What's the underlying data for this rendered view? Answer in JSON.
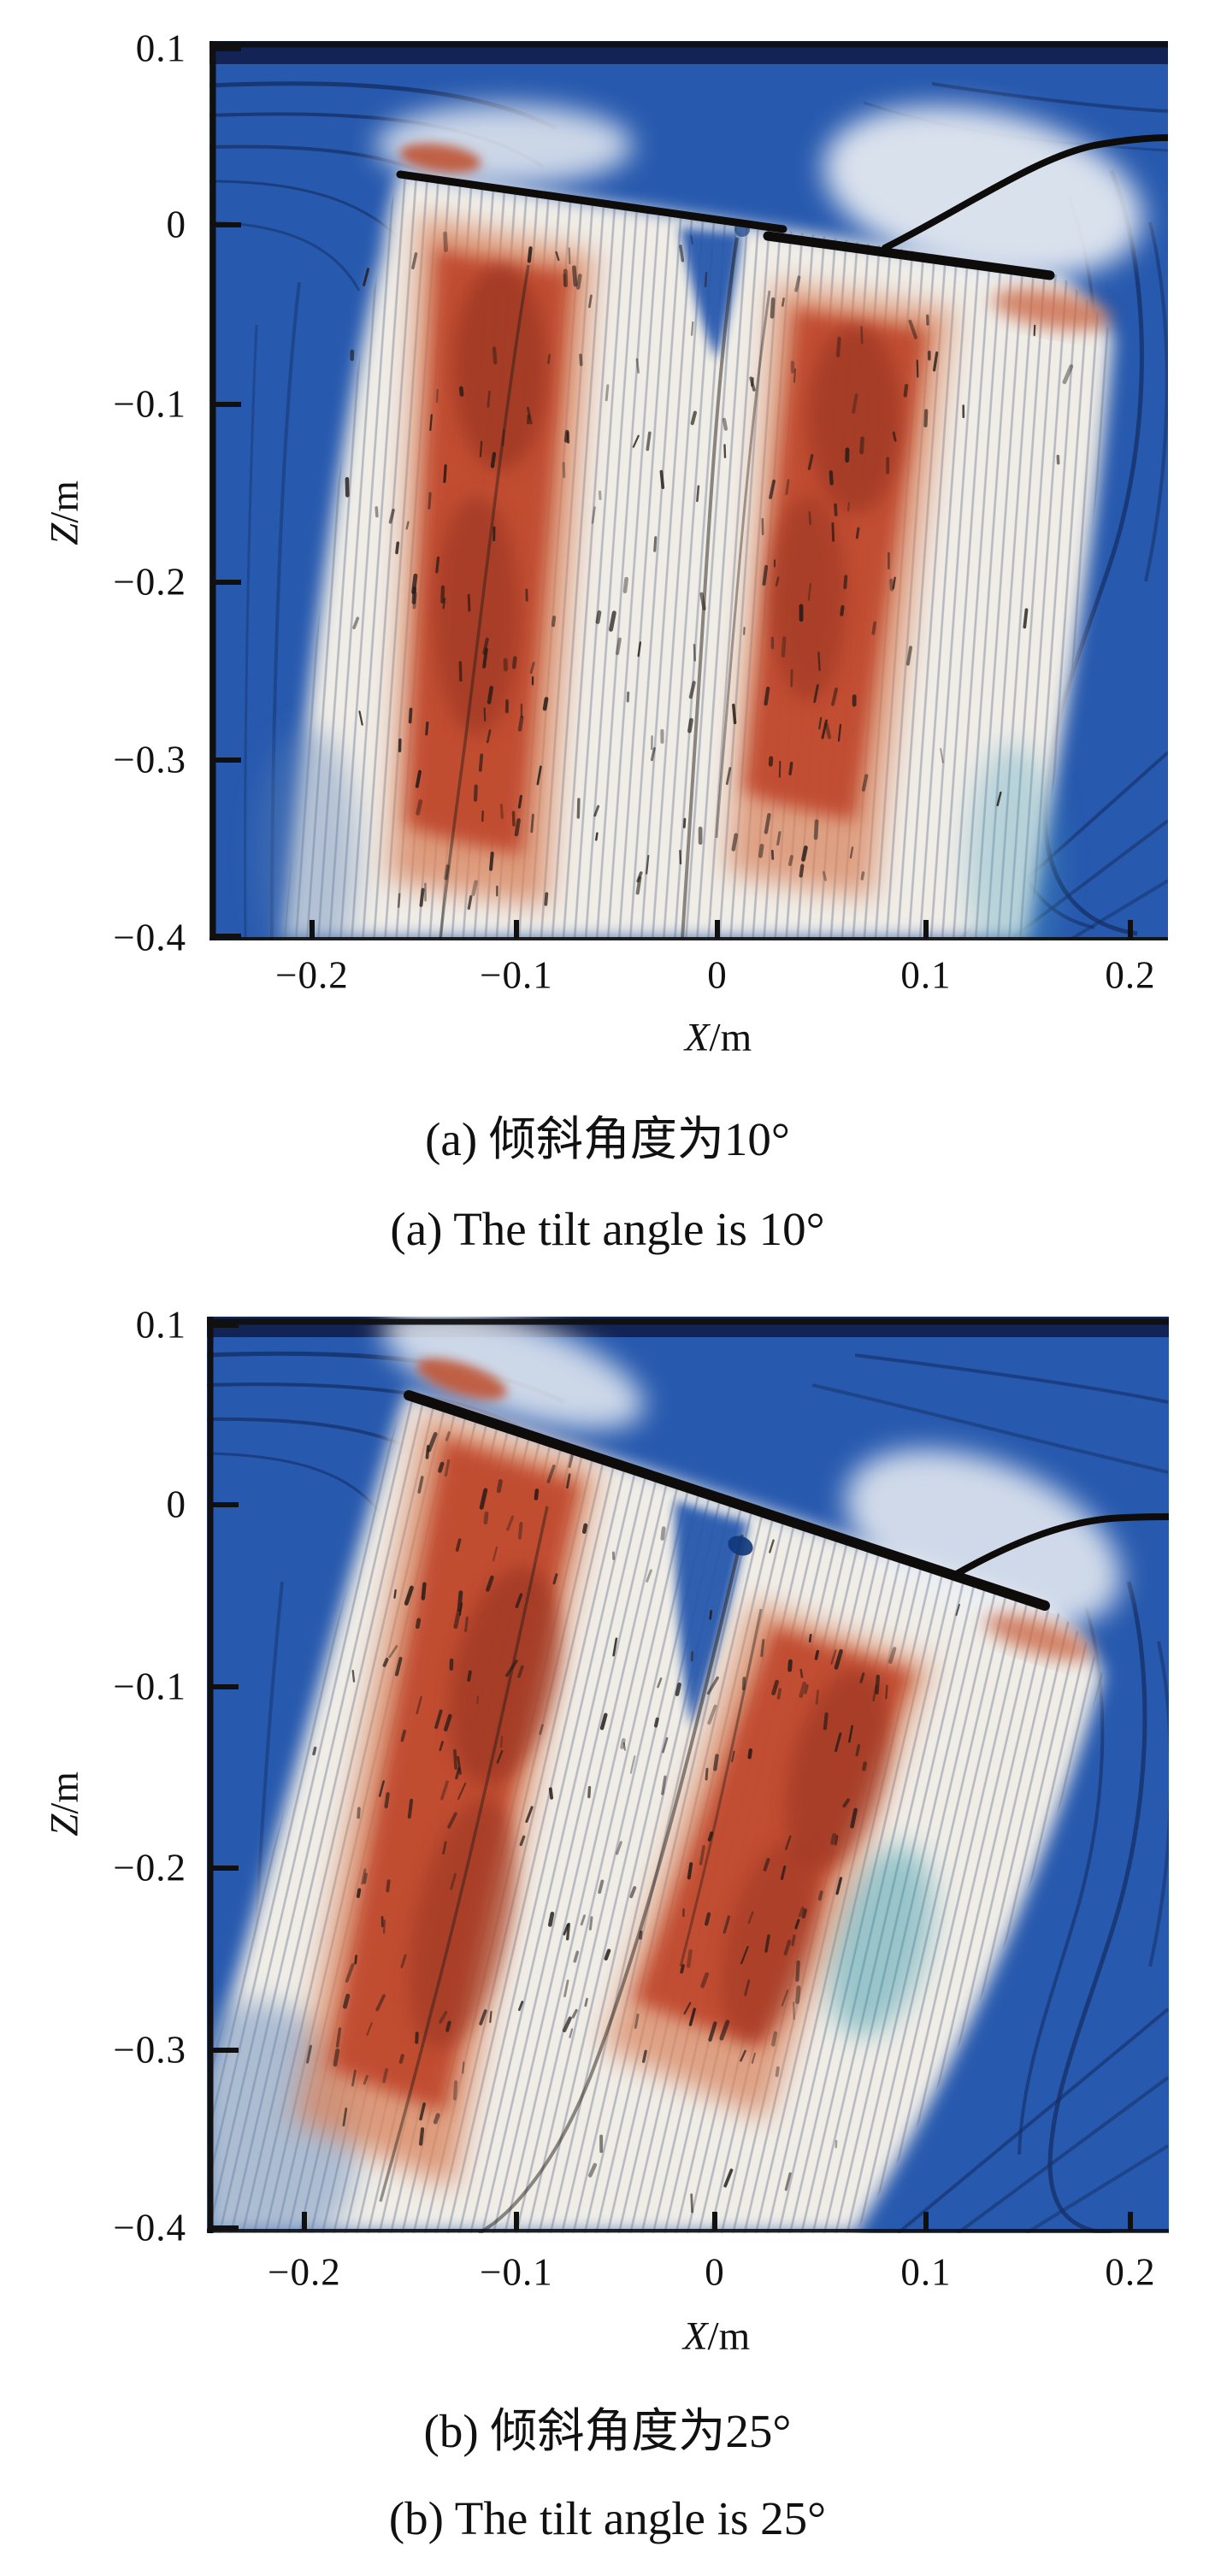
{
  "figure": {
    "kind": "two-panel CFD streamline & velocity-contour figure of a tilted rotor downwash",
    "background": "#ffffff",
    "panels": [
      "a",
      "b"
    ]
  },
  "chart_data": [
    {
      "panel": "a",
      "type": "heatmap",
      "subtype": "cfd-streamline-velocity-contour",
      "caption_zh": "(a) 倾斜角度为10°",
      "caption_en": "(a) The tilt angle is 10°",
      "tilt_angle_deg": 10,
      "xlabel_var": "X",
      "xlabel_unit": "/m",
      "ylabel_var": "Z",
      "ylabel_unit": "/m",
      "xlim": [
        -0.25,
        0.22
      ],
      "ylim": [
        -0.41,
        0.11
      ],
      "xticks": [
        -0.2,
        -0.1,
        0,
        0.1,
        0.2
      ],
      "yticks": [
        0.1,
        0,
        -0.1,
        -0.2,
        -0.3,
        -0.4
      ],
      "xtick_labels": [
        "−0.2",
        "−0.1",
        "0",
        "0.1",
        "0.2"
      ],
      "ytick_labels": [
        "0.1",
        "0",
        "−0.1",
        "−0.2",
        "−0.3",
        "−0.4"
      ],
      "grid": false,
      "legend": "none",
      "rotor_disk_line_m": {
        "x1": -0.155,
        "z1": 0.028,
        "x2": 0.163,
        "z2": -0.028
      },
      "flow_features": [
        "two high-velocity downwash columns (red cores) descending nearly vertically below the tilted disk",
        "pale high-speed jet envelope with dense streamline streaks",
        "ambient low-velocity fluid shown blue with dark navy streamlines",
        "thick black wake/tip-vortex line curving from the disk tip to the right edge",
        "recirculation loops in the blue region right of the jet"
      ],
      "colors": {
        "ambient_blue": "#2759ae",
        "streamline_navy": "#152f66",
        "jet_pale": "#f0ede7",
        "core_red": "#c04a2e",
        "core_dark_red": "#993620",
        "salmon": "#d98762",
        "solid_line_black": "#0e0c0a"
      }
    },
    {
      "panel": "b",
      "type": "heatmap",
      "subtype": "cfd-streamline-velocity-contour",
      "caption_zh": "(b) 倾斜角度为25°",
      "caption_en": "(b) The tilt angle is 25°",
      "tilt_angle_deg": 25,
      "xlabel_var": "X",
      "xlabel_unit": "/m",
      "ylabel_var": "Z",
      "ylabel_unit": "/m",
      "xlim": [
        -0.25,
        0.22
      ],
      "ylim": [
        -0.41,
        0.11
      ],
      "xticks": [
        -0.2,
        -0.1,
        0,
        0.1,
        0.2
      ],
      "yticks": [
        0.1,
        0,
        -0.1,
        -0.2,
        -0.3,
        -0.4
      ],
      "xtick_labels": [
        "−0.2",
        "−0.1",
        "0",
        "0.1",
        "0.2"
      ],
      "ytick_labels": [
        "0.1",
        "0",
        "−0.1",
        "−0.2",
        "−0.3",
        "−0.4"
      ],
      "grid": false,
      "legend": "none",
      "rotor_disk_line_m": {
        "x1": -0.15,
        "z1": 0.06,
        "x2": 0.161,
        "z2": -0.055
      },
      "flow_features": [
        "downwash columns (red cores) deflected, slanting down-left below the strongly tilted disk",
        "jet envelope tilted about 10–20 degrees from vertical, reaching lower-left corner",
        "ambient blue fluid with navy streamlines; teal pocket right of the jet",
        "thick black wake line leaving the disk tip toward the right edge",
        "dark blue hub-wake spot just below the disk centre"
      ],
      "colors": {
        "ambient_blue": "#2759ae",
        "streamline_navy": "#152f66",
        "jet_pale": "#f0ede7",
        "core_red": "#c04a2e",
        "core_dark_red": "#993620",
        "salmon": "#d98762",
        "teal": "#2e93a8",
        "solid_line_black": "#0e0c0a"
      }
    }
  ]
}
